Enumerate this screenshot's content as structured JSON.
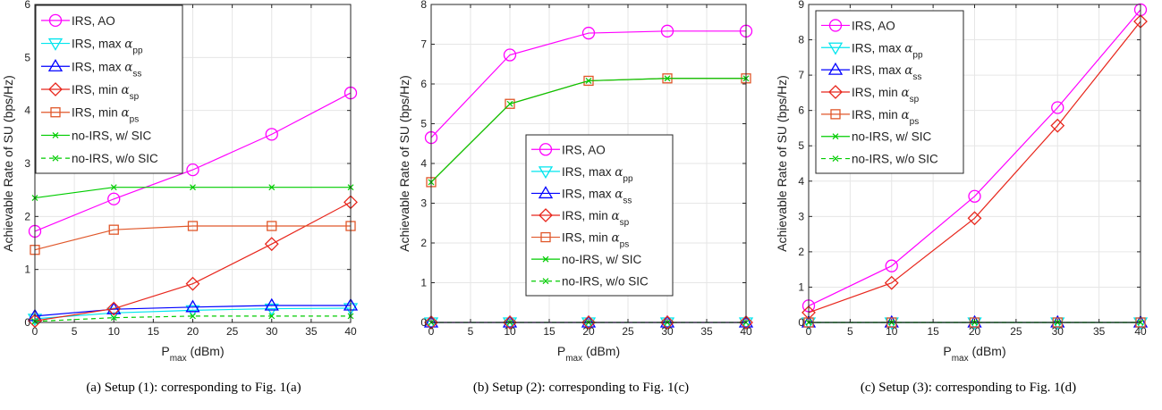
{
  "figure": {
    "captions": [
      "(a) Setup (1): corresponding to Fig. 1(a)",
      "(b) Setup (2): corresponding to Fig. 1(c)",
      "(c) Setup (3): corresponding to Fig. 1(d)"
    ]
  },
  "style": {
    "series_colors": {
      "IRS, AO": "#ff00ff",
      "IRS, max pp": "#00e5ee",
      "IRS, max ss": "#0000ff",
      "IRS, min sp": "#e8261c",
      "IRS, min ps": "#e0572a",
      "no-IRS, w/ SIC": "#00cc00",
      "no-IRS, w/o SIC": "#00cc00"
    },
    "grid_color": "#e6e6e6"
  },
  "chart_data": [
    {
      "type": "line",
      "xlabel": "P_max (dBm)",
      "ylabel": "Achievable Rate of SU (bps/Hz)",
      "x": [
        0,
        10,
        20,
        30,
        40
      ],
      "xlim": [
        0,
        40
      ],
      "ylim": [
        0,
        6
      ],
      "xticks": [
        0,
        5,
        10,
        15,
        20,
        25,
        30,
        35,
        40
      ],
      "yticks": [
        0,
        1,
        2,
        3,
        4,
        5,
        6
      ],
      "grid": true,
      "legend_position": "top-left",
      "series": [
        {
          "name": "IRS, AO",
          "base": "IRS, AO",
          "sub": "",
          "marker": "circle",
          "dash": "solid",
          "values": [
            1.72,
            2.33,
            2.88,
            3.55,
            4.33
          ]
        },
        {
          "name": "IRS, max pp",
          "base": "IRS, max ",
          "sub": "pp",
          "marker": "triangle-down",
          "dash": "solid",
          "values": [
            0.07,
            0.18,
            0.23,
            0.26,
            0.27
          ]
        },
        {
          "name": "IRS, max ss",
          "base": "IRS, max ",
          "sub": "ss",
          "marker": "triangle-up",
          "dash": "solid",
          "values": [
            0.12,
            0.25,
            0.29,
            0.32,
            0.32
          ]
        },
        {
          "name": "IRS, min sp",
          "base": "IRS, min ",
          "sub": "sp",
          "marker": "diamond",
          "dash": "solid",
          "values": [
            0.03,
            0.26,
            0.73,
            1.48,
            2.27
          ]
        },
        {
          "name": "IRS, min ps",
          "base": "IRS, min ",
          "sub": "ps",
          "marker": "square",
          "dash": "solid",
          "values": [
            1.37,
            1.75,
            1.82,
            1.82,
            1.82
          ]
        },
        {
          "name": "no-IRS, w/ SIC",
          "base": "no-IRS, w/ SIC",
          "sub": "",
          "marker": "x",
          "dash": "solid",
          "values": [
            2.35,
            2.55,
            2.55,
            2.55,
            2.55
          ]
        },
        {
          "name": "no-IRS, w/o SIC",
          "base": "no-IRS, w/o SIC",
          "sub": "",
          "marker": "x",
          "dash": "dashed",
          "values": [
            0.02,
            0.09,
            0.12,
            0.12,
            0.12
          ]
        }
      ]
    },
    {
      "type": "line",
      "xlabel": "P_max (dBm)",
      "ylabel": "Achievable Rate of SU (bps/Hz)",
      "x": [
        0,
        10,
        20,
        30,
        40
      ],
      "xlim": [
        0,
        40
      ],
      "ylim": [
        0,
        8
      ],
      "xticks": [
        0,
        5,
        10,
        15,
        20,
        25,
        30,
        35,
        40
      ],
      "yticks": [
        0,
        1,
        2,
        3,
        4,
        5,
        6,
        7,
        8
      ],
      "grid": true,
      "legend_position": "center",
      "series": [
        {
          "name": "IRS, AO",
          "base": "IRS, AO",
          "sub": "",
          "marker": "circle",
          "dash": "solid",
          "values": [
            4.65,
            6.73,
            7.28,
            7.33,
            7.33
          ]
        },
        {
          "name": "IRS, max pp",
          "base": "IRS, max ",
          "sub": "pp",
          "marker": "triangle-down",
          "dash": "solid",
          "values": [
            0,
            0,
            0,
            0,
            0
          ]
        },
        {
          "name": "IRS, max ss",
          "base": "IRS, max ",
          "sub": "ss",
          "marker": "triangle-up",
          "dash": "solid",
          "values": [
            0,
            0,
            0,
            0,
            0
          ]
        },
        {
          "name": "IRS, min sp",
          "base": "IRS, min ",
          "sub": "sp",
          "marker": "diamond",
          "dash": "solid",
          "values": [
            0,
            0,
            0,
            0,
            0
          ]
        },
        {
          "name": "IRS, min ps",
          "base": "IRS, min ",
          "sub": "ps",
          "marker": "square",
          "dash": "solid",
          "values": [
            3.53,
            5.5,
            6.08,
            6.14,
            6.14
          ]
        },
        {
          "name": "no-IRS, w/ SIC",
          "base": "no-IRS, w/ SIC",
          "sub": "",
          "marker": "x",
          "dash": "solid",
          "values": [
            3.53,
            5.5,
            6.08,
            6.14,
            6.14
          ]
        },
        {
          "name": "no-IRS, w/o SIC",
          "base": "no-IRS, w/o SIC",
          "sub": "",
          "marker": "x",
          "dash": "dashed",
          "values": [
            0,
            0,
            0,
            0,
            0
          ]
        }
      ]
    },
    {
      "type": "line",
      "xlabel": "P_max (dBm)",
      "ylabel": "Achievable Rate of SU (bps/Hz)",
      "x": [
        0,
        10,
        20,
        30,
        40
      ],
      "xlim": [
        0,
        40
      ],
      "ylim": [
        0,
        9
      ],
      "xticks": [
        0,
        5,
        10,
        15,
        20,
        25,
        30,
        35,
        40
      ],
      "yticks": [
        0,
        1,
        2,
        3,
        4,
        5,
        6,
        7,
        8,
        9
      ],
      "grid": true,
      "legend_position": "top-left",
      "series": [
        {
          "name": "IRS, AO",
          "base": "IRS, AO",
          "sub": "",
          "marker": "circle",
          "dash": "solid",
          "values": [
            0.47,
            1.6,
            3.57,
            6.08,
            8.85
          ]
        },
        {
          "name": "IRS, max pp",
          "base": "IRS, max ",
          "sub": "pp",
          "marker": "triangle-down",
          "dash": "solid",
          "values": [
            0,
            0,
            0,
            0,
            0
          ]
        },
        {
          "name": "IRS, max ss",
          "base": "IRS, max ",
          "sub": "ss",
          "marker": "triangle-up",
          "dash": "solid",
          "values": [
            0,
            0,
            0,
            0,
            0
          ]
        },
        {
          "name": "IRS, min sp",
          "base": "IRS, min ",
          "sub": "sp",
          "marker": "diamond",
          "dash": "solid",
          "values": [
            0.28,
            1.12,
            2.95,
            5.57,
            8.52
          ]
        },
        {
          "name": "IRS, min ps",
          "base": "IRS, min ",
          "sub": "ps",
          "marker": "square",
          "dash": "solid",
          "values": [
            0,
            0,
            0,
            0,
            0
          ]
        },
        {
          "name": "no-IRS, w/ SIC",
          "base": "no-IRS, w/ SIC",
          "sub": "",
          "marker": "x",
          "dash": "solid",
          "values": [
            0,
            0,
            0,
            0,
            0
          ]
        },
        {
          "name": "no-IRS, w/o SIC",
          "base": "no-IRS, w/o SIC",
          "sub": "",
          "marker": "x",
          "dash": "dashed",
          "values": [
            0,
            0,
            0,
            0,
            0
          ]
        }
      ]
    }
  ]
}
